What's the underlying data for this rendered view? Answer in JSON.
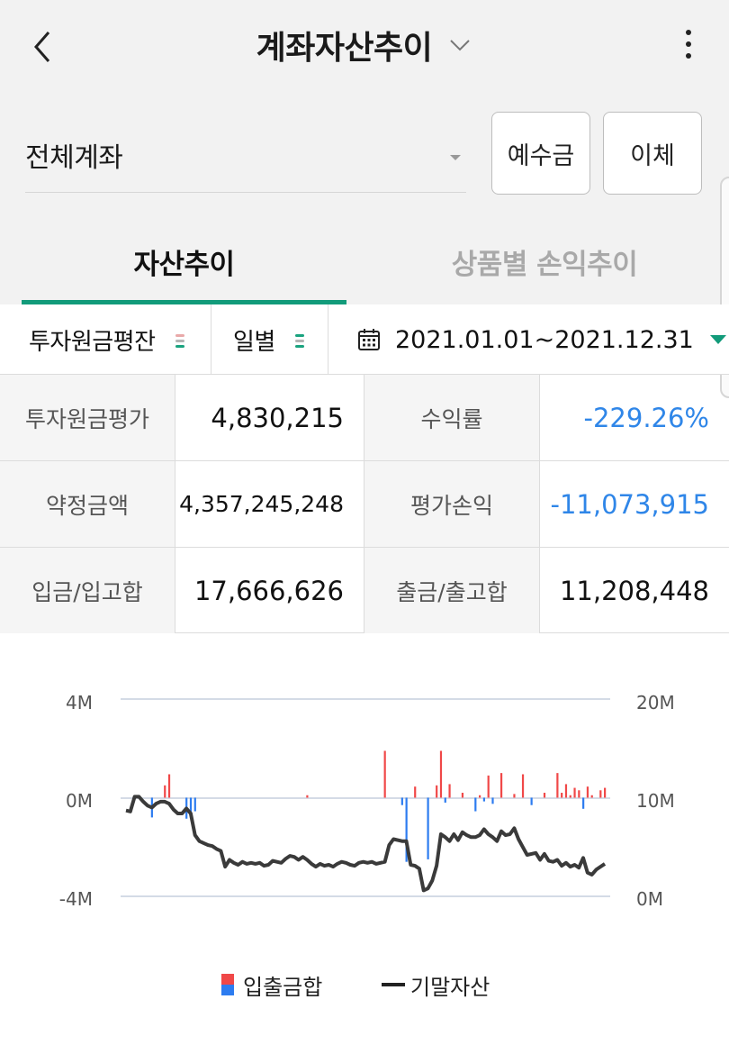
{
  "header": {
    "title": "계좌자산추이",
    "back_icon": "chevron-left-icon",
    "title_icon": "chevron-down-icon",
    "menu_icon": "more-vertical-icon"
  },
  "account": {
    "selected": "전체계좌"
  },
  "buttons": {
    "deposit": "예수금",
    "transfer": "이체"
  },
  "tabs": [
    {
      "label": "자산추이",
      "active": true
    },
    {
      "label": "상품별 손익추이",
      "active": false
    }
  ],
  "filters": {
    "basis": "투자원금평잔",
    "period": "일별",
    "date_range": "2021.01.01~2021.12.31"
  },
  "summary": [
    {
      "label": "투자원금평가",
      "value": "4,830,215"
    },
    {
      "label": "수익률",
      "value": "-229.26%"
    },
    {
      "label": "약정금액",
      "value": "4,357,245,248"
    },
    {
      "label": "평가손익",
      "value": "-11,073,915"
    },
    {
      "label": "입금/입고합",
      "value": "17,666,626"
    },
    {
      "label": "출금/출고합",
      "value": "11,208,448"
    }
  ],
  "colors": {
    "accent": "#129b7a",
    "negative": "#2f86e8",
    "inflow_bar": "#f04848",
    "outflow_bar": "#2d7cf0",
    "asset_line": "#3a3a3a"
  },
  "chart_data": {
    "type": "bar+line",
    "left_axis": {
      "ticks": [
        "4M",
        "0M",
        "-4M"
      ],
      "ylim": [
        -4000000,
        4000000
      ]
    },
    "right_axis": {
      "ticks": [
        "20M",
        "10M",
        "0M"
      ],
      "ylim": [
        0,
        20000000
      ]
    },
    "legend": [
      "입출금합",
      "기말자산"
    ],
    "legend_position": "bottom",
    "series": [
      {
        "name": "입출금합",
        "type": "bar",
        "axis": "left",
        "x_index": [
          6,
          9,
          10,
          14,
          15,
          16,
          42,
          60,
          64,
          65,
          67,
          70,
          72,
          73,
          74,
          75,
          78,
          81,
          82,
          83,
          84,
          85,
          87,
          90,
          92,
          94,
          97,
          100,
          101,
          102,
          103,
          104,
          105,
          106,
          107,
          108,
          110,
          111
        ],
        "values": [
          -800000,
          500000,
          950000,
          -850000,
          -600000,
          -550000,
          100000,
          1900000,
          -300000,
          -2600000,
          450000,
          -2500000,
          500000,
          1900000,
          -200000,
          550000,
          200000,
          -550000,
          100000,
          -150000,
          900000,
          -250000,
          1000000,
          150000,
          950000,
          -300000,
          200000,
          1000000,
          200000,
          550000,
          100000,
          400000,
          300000,
          -450000,
          450000,
          100000,
          300000,
          400000
        ],
        "x_count": 112
      },
      {
        "name": "기말자산",
        "type": "line",
        "axis": "right",
        "values": [
          8.7,
          8.6,
          10.1,
          10.1,
          9.6,
          9.2,
          9.0,
          9.4,
          9.6,
          9.6,
          9.4,
          8.8,
          8.4,
          8.4,
          8.9,
          8.4,
          6.2,
          5.6,
          5.4,
          5.2,
          5.1,
          4.8,
          4.6,
          3.0,
          3.7,
          3.4,
          3.2,
          3.5,
          3.3,
          3.4,
          3.3,
          3.4,
          3.1,
          3.2,
          3.6,
          3.5,
          3.4,
          3.8,
          4.1,
          4.0,
          3.7,
          4.0,
          3.7,
          3.3,
          3.0,
          3.3,
          3.1,
          3.2,
          3.0,
          3.3,
          3.5,
          3.4,
          3.2,
          3.1,
          3.4,
          3.5,
          3.4,
          3.5,
          3.3,
          3.4,
          3.5,
          5.2,
          5.8,
          5.7,
          5.6,
          5.6,
          3.2,
          3.1,
          2.8,
          0.6,
          0.8,
          1.6,
          3.1,
          6.3,
          6.0,
          5.6,
          6.3,
          5.7,
          6.5,
          6.2,
          6.0,
          6.0,
          6.2,
          6.8,
          6.3,
          6.0,
          5.6,
          6.6,
          6.2,
          6.3,
          6.9,
          5.8,
          5.0,
          4.2,
          4.3,
          4.4,
          3.7,
          4.3,
          3.6,
          3.5,
          3.7,
          3.1,
          3.4,
          3.0,
          3.2,
          2.9,
          3.9,
          2.4,
          2.2,
          2.7,
          3.0,
          3.3
        ],
        "unit": "M"
      }
    ]
  }
}
